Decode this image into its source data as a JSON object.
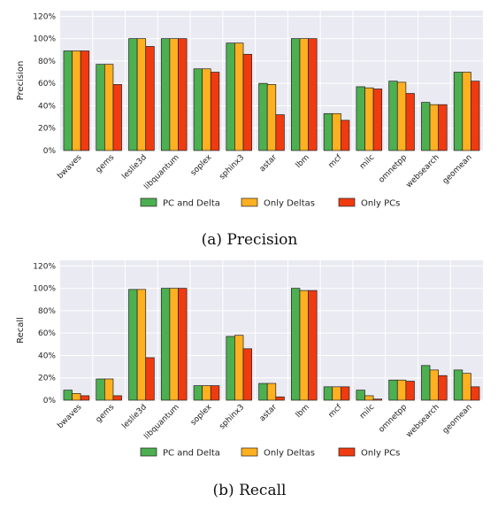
{
  "colors": {
    "background": "#eaeaf2",
    "grid": "#ffffff",
    "pc_and_delta": "#4caf50",
    "only_deltas": "#ffb020",
    "only_pcs": "#f03a10",
    "bar_edge": "#222222"
  },
  "chart_data": [
    {
      "type": "bar",
      "caption": "(a) Precision",
      "ylabel": "Precision",
      "xlabel": "",
      "ylim": [
        0,
        125
      ],
      "yticks": [
        "0%",
        "20%",
        "40%",
        "60%",
        "80%",
        "100%",
        "120%"
      ],
      "ytick_values": [
        0,
        20,
        40,
        60,
        80,
        100,
        120
      ],
      "grid": true,
      "legend_placement": "bottom",
      "categories": [
        "bwaves",
        "gems",
        "leslie3d",
        "libquantum",
        "soplex",
        "sphinx3",
        "astar",
        "lbm",
        "mcf",
        "milc",
        "omnetpp",
        "websearch",
        "geomean"
      ],
      "series": [
        {
          "name": "PC and Delta",
          "values": [
            89,
            77,
            100,
            100,
            73,
            96,
            60,
            100,
            33,
            57,
            62,
            43,
            70
          ]
        },
        {
          "name": "Only Deltas",
          "values": [
            89,
            77,
            100,
            100,
            73,
            96,
            59,
            100,
            33,
            56,
            61,
            41,
            70
          ]
        },
        {
          "name": "Only PCs",
          "values": [
            89,
            59,
            93,
            100,
            70,
            86,
            32,
            100,
            27,
            55,
            51,
            41,
            62
          ]
        }
      ]
    },
    {
      "type": "bar",
      "caption": "(b) Recall",
      "ylabel": "Recall",
      "xlabel": "",
      "ylim": [
        0,
        125
      ],
      "yticks": [
        "0%",
        "20%",
        "40%",
        "60%",
        "80%",
        "100%",
        "120%"
      ],
      "ytick_values": [
        0,
        20,
        40,
        60,
        80,
        100,
        120
      ],
      "grid": true,
      "legend_placement": "bottom",
      "categories": [
        "bwaves",
        "gems",
        "leslie3d",
        "libquantum",
        "soplex",
        "sphinx3",
        "astar",
        "lbm",
        "mcf",
        "milc",
        "omnetpp",
        "websearch",
        "geomean"
      ],
      "series": [
        {
          "name": "PC and Delta",
          "values": [
            9,
            19,
            99,
            100,
            13,
            57,
            15,
            100,
            12,
            9,
            18,
            31,
            27
          ]
        },
        {
          "name": "Only Deltas",
          "values": [
            6,
            19,
            99,
            100,
            13,
            58,
            15,
            98,
            12,
            4,
            18,
            27,
            24
          ]
        },
        {
          "name": "Only PCs",
          "values": [
            4,
            4,
            38,
            100,
            13,
            46,
            3,
            98,
            12,
            1,
            17,
            22,
            12
          ]
        }
      ]
    }
  ]
}
